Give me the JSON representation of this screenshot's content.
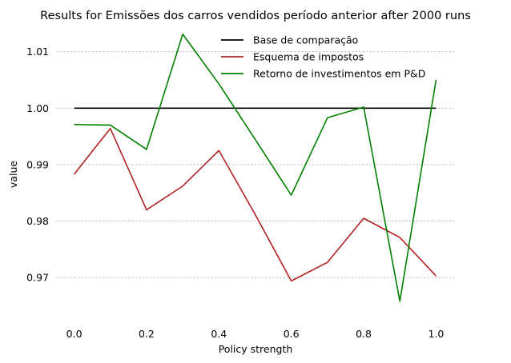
{
  "chart_data": {
    "type": "line",
    "title": "Results for Emissões dos carros vendidos período anterior after 2000 runs",
    "xlabel": "Policy strength",
    "ylabel": "value",
    "x": [
      0.0,
      0.1,
      0.2,
      0.3,
      0.4,
      0.5,
      0.6,
      0.7,
      0.8,
      0.9,
      1.0
    ],
    "xlim": [
      -0.05,
      1.05
    ],
    "ylim": [
      0.9628,
      1.0142
    ],
    "xticks": [
      "0.0",
      "0.2",
      "0.4",
      "0.6",
      "0.8",
      "1.0"
    ],
    "yticks": [
      "0.97",
      "0.98",
      "0.99",
      "1.00",
      "1.01"
    ],
    "grid": "horizontal dashed",
    "legend_position": "top-right",
    "series": [
      {
        "name": "Base de comparação",
        "color": "#000000",
        "values": [
          1.0,
          1.0,
          1.0,
          1.0,
          1.0,
          1.0,
          1.0,
          1.0,
          1.0,
          1.0,
          1.0
        ]
      },
      {
        "name": "Esquema de impostos",
        "color": "#b22222",
        "values": [
          0.9883,
          0.9964,
          0.982,
          0.9862,
          0.9925,
          0.9812,
          0.9694,
          0.9727,
          0.9805,
          0.9771,
          0.9703
        ]
      },
      {
        "name": "Retorno de investimentos em P&D",
        "color": "#008000",
        "values": [
          0.9971,
          0.997,
          0.9927,
          1.0131,
          1.0043,
          0.9945,
          0.9846,
          0.9983,
          1.0002,
          0.9658,
          1.005
        ]
      }
    ]
  }
}
